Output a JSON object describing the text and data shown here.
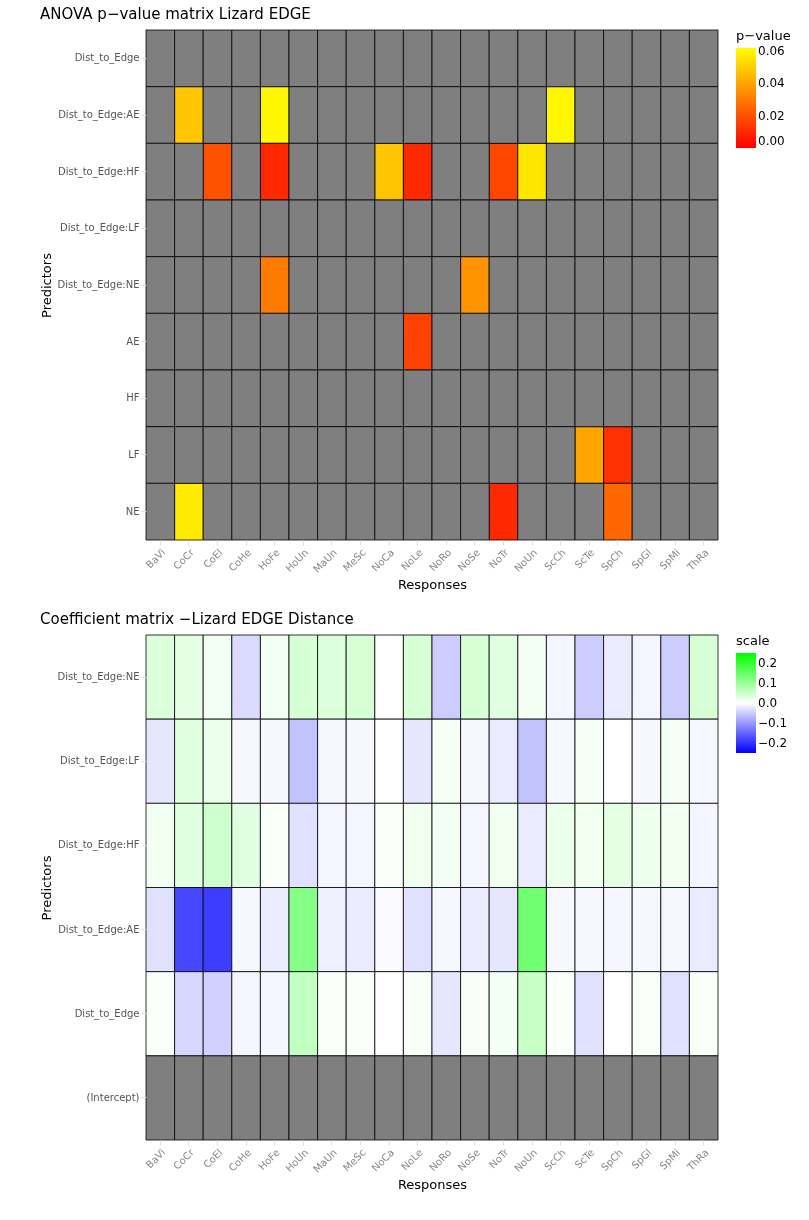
{
  "chart_data": [
    {
      "type": "heatmap",
      "title": "ANOVA p−value matrix Lizard EDGE",
      "xlabel": "Responses",
      "ylabel": "Predictors",
      "legend_title": "p−value",
      "categories": [
        "BaVi",
        "CoCr",
        "CoEl",
        "CoHe",
        "HoFe",
        "HoUn",
        "MaUn",
        "MeSc",
        "NoCa",
        "NoLe",
        "NoRo",
        "NoSe",
        "NoTr",
        "NoUn",
        "ScCh",
        "ScTe",
        "SpCh",
        "SpGl",
        "SpMi",
        "ThRa"
      ],
      "y_categories": [
        "Dist_to_Edge",
        "Dist_to_Edge:AE",
        "Dist_to_Edge:HF",
        "Dist_to_Edge:LF",
        "Dist_to_Edge:NE",
        "AE",
        "HF",
        "LF",
        "NE"
      ],
      "cells": [
        [
          null,
          null,
          null,
          null,
          null,
          null,
          null,
          null,
          null,
          null,
          null,
          null,
          null,
          null,
          null,
          null,
          null,
          null,
          null,
          null
        ],
        [
          null,
          0.048,
          null,
          null,
          0.06,
          null,
          null,
          null,
          null,
          null,
          null,
          null,
          null,
          null,
          0.06,
          null,
          null,
          null,
          null,
          null
        ],
        [
          null,
          null,
          0.02,
          null,
          0.01,
          null,
          null,
          null,
          0.048,
          0.01,
          null,
          null,
          0.017,
          0.056,
          null,
          null,
          null,
          null,
          null,
          null
        ],
        [
          null,
          null,
          null,
          null,
          null,
          null,
          null,
          null,
          null,
          null,
          null,
          null,
          null,
          null,
          null,
          null,
          null,
          null,
          null,
          null
        ],
        [
          null,
          null,
          null,
          null,
          0.03,
          null,
          null,
          null,
          null,
          null,
          null,
          0.036,
          null,
          null,
          null,
          null,
          null,
          null,
          null,
          null
        ],
        [
          null,
          null,
          null,
          null,
          null,
          null,
          null,
          null,
          null,
          0.016,
          null,
          null,
          null,
          null,
          null,
          null,
          null,
          null,
          null,
          null
        ],
        [
          null,
          null,
          null,
          null,
          null,
          null,
          null,
          null,
          null,
          null,
          null,
          null,
          null,
          null,
          null,
          null,
          null,
          null,
          null,
          null
        ],
        [
          null,
          null,
          null,
          null,
          null,
          null,
          null,
          null,
          null,
          null,
          null,
          null,
          null,
          null,
          null,
          0.04,
          0.012,
          null,
          null,
          null
        ],
        [
          null,
          0.057,
          null,
          null,
          null,
          null,
          null,
          null,
          null,
          null,
          null,
          null,
          0.01,
          null,
          null,
          null,
          0.025,
          null,
          null,
          null
        ]
      ],
      "clim": [
        0,
        0.062
      ],
      "cticks": [
        {
          "value": 0,
          "label": "0.00"
        },
        {
          "value": 0.02,
          "label": "0.02"
        },
        {
          "value": 0.04,
          "label": "0.04"
        },
        {
          "value": 0.06,
          "label": "0.06"
        }
      ],
      "colors": [
        "#ff0000",
        "#ffff00"
      ]
    },
    {
      "type": "heatmap",
      "title": "Coefficient matrix −Lizard EDGE Distance",
      "xlabel": "Responses",
      "ylabel": "Predictors",
      "legend_title": "scale",
      "categories": [
        "BaVi",
        "CoCr",
        "CoEl",
        "CoHe",
        "HoFe",
        "HoUn",
        "MaUn",
        "MeSc",
        "NoCa",
        "NoLe",
        "NoRo",
        "NoSe",
        "NoTr",
        "NoUn",
        "ScCh",
        "ScTe",
        "SpCh",
        "SpGl",
        "SpMi",
        "ThRa"
      ],
      "y_categories": [
        "Dist_to_Edge:NE",
        "Dist_to_Edge:LF",
        "Dist_to_Edge:HF",
        "Dist_to_Edge:AE",
        "Dist_to_Edge",
        "(Intercept)"
      ],
      "cells": [
        [
          0.035,
          0.025,
          0.012,
          -0.035,
          0.012,
          0.04,
          0.035,
          0.04,
          0,
          0.04,
          -0.05,
          0.04,
          0.03,
          0.012,
          -0.01,
          -0.05,
          -0.02,
          -0.01,
          -0.05,
          0.04
        ],
        [
          -0.025,
          0.03,
          0.02,
          -0.008,
          -0.008,
          -0.06,
          -0.008,
          -0.008,
          0,
          -0.025,
          0.01,
          -0.008,
          -0.02,
          -0.06,
          -0.008,
          0.01,
          0,
          -0.008,
          0.01,
          -0.008
        ],
        [
          0.012,
          0.03,
          0.05,
          0.03,
          0.005,
          -0.03,
          -0.01,
          -0.01,
          0.005,
          0.015,
          0.012,
          -0.01,
          0.015,
          -0.02,
          0.02,
          0.015,
          0.025,
          0.018,
          0.015,
          -0.01
        ],
        [
          -0.03,
          -0.18,
          -0.19,
          -0.008,
          -0.02,
          0.12,
          -0.015,
          -0.02,
          -0.005,
          -0.03,
          -0.008,
          -0.02,
          -0.025,
          0.14,
          -0.008,
          -0.008,
          -0.01,
          -0.008,
          -0.008,
          -0.02
        ],
        [
          0.005,
          -0.04,
          -0.045,
          -0.01,
          -0.01,
          0.06,
          0.005,
          0.005,
          0,
          0.008,
          -0.025,
          0.008,
          0.012,
          0.055,
          0.005,
          -0.03,
          0,
          0.005,
          -0.03,
          0.005
        ],
        [
          null,
          null,
          null,
          null,
          null,
          null,
          null,
          null,
          null,
          null,
          null,
          null,
          null,
          null,
          null,
          null,
          null,
          null,
          null,
          null
        ]
      ],
      "clim": [
        -0.25,
        0.25
      ],
      "cticks": [
        {
          "value": -0.2,
          "label": "−0.2"
        },
        {
          "value": -0.1,
          "label": "−0.1"
        },
        {
          "value": 0,
          "label": "0.0"
        },
        {
          "value": 0.1,
          "label": "0.1"
        },
        {
          "value": 0.2,
          "label": "0.2"
        }
      ],
      "colors": [
        "#0000ff",
        "#ffffff",
        "#00ff00"
      ]
    }
  ]
}
